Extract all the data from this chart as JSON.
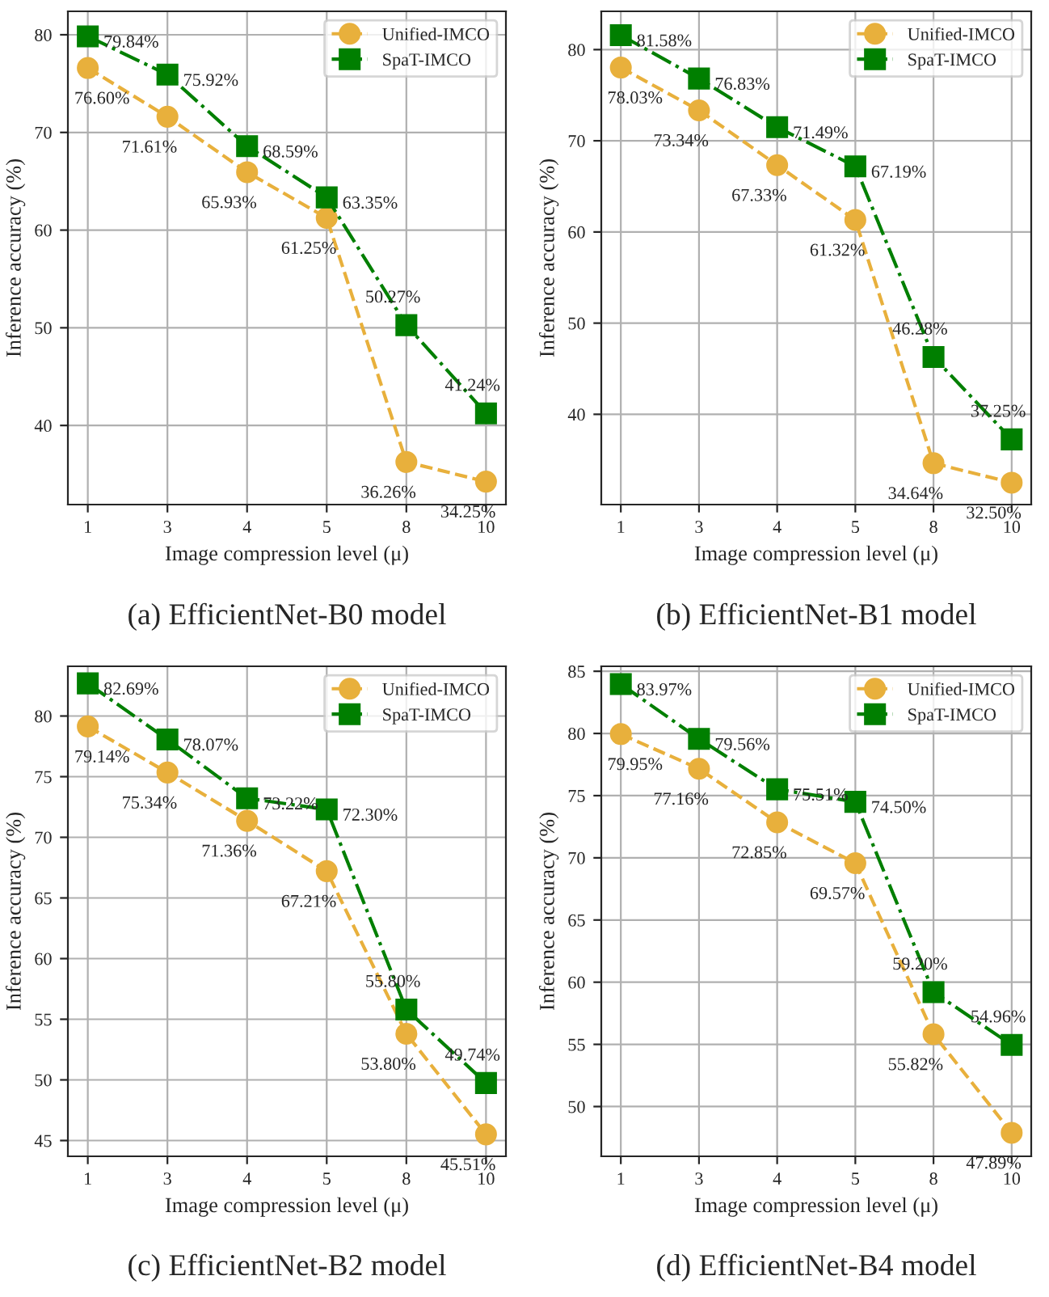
{
  "chart_data": [
    {
      "type": "line",
      "title": "(a) EfficientNet-B0 model",
      "xlabel": "Image compression level (μ)",
      "ylabel": "Inference accuracy (%)",
      "categories": [
        "1",
        "3",
        "4",
        "5",
        "8",
        "10"
      ],
      "ylim": [
        31.9,
        82.4
      ],
      "yticks": [
        40,
        50,
        60,
        70,
        80
      ],
      "grid": true,
      "legend": "top right",
      "series": [
        {
          "name": "Unified-IMCO",
          "color": "#e8b03c",
          "marker": "circle",
          "line_style": "dashed",
          "values": [
            76.6,
            71.61,
            65.93,
            61.25,
            36.26,
            34.25
          ],
          "value_labels": [
            "76.60%",
            "71.61%",
            "65.93%",
            "61.25%",
            "36.26%",
            "34.25%"
          ]
        },
        {
          "name": "SpaT-IMCO",
          "color": "#007f00",
          "marker": "square",
          "line_style": "dashdot",
          "values": [
            79.84,
            75.92,
            68.59,
            63.35,
            50.27,
            41.24
          ],
          "value_labels": [
            "79.84%",
            "75.92%",
            "68.59%",
            "63.35%",
            "50.27%",
            "41.24%"
          ]
        }
      ]
    },
    {
      "type": "line",
      "title": "(b) EfficientNet-B1 model",
      "xlabel": "Image compression level (μ)",
      "ylabel": "Inference accuracy (%)",
      "categories": [
        "1",
        "3",
        "4",
        "5",
        "8",
        "10"
      ],
      "ylim": [
        30.1,
        84.2
      ],
      "yticks": [
        40,
        50,
        60,
        70,
        80
      ],
      "grid": true,
      "legend": "top right",
      "series": [
        {
          "name": "Unified-IMCO",
          "color": "#e8b03c",
          "marker": "circle",
          "line_style": "dashed",
          "values": [
            78.03,
            73.34,
            67.33,
            61.32,
            34.64,
            32.5
          ],
          "value_labels": [
            "78.03%",
            "73.34%",
            "67.33%",
            "61.32%",
            "34.64%",
            "32.50%"
          ]
        },
        {
          "name": "SpaT-IMCO",
          "color": "#007f00",
          "marker": "square",
          "line_style": "dashdot",
          "values": [
            81.58,
            76.83,
            71.49,
            67.19,
            46.28,
            37.25
          ],
          "value_labels": [
            "81.58%",
            "76.83%",
            "71.49%",
            "67.19%",
            "46.28%",
            "37.25%"
          ]
        }
      ]
    },
    {
      "type": "line",
      "title": "(c) EfficientNet-B2 model",
      "xlabel": "Image compression level (μ)",
      "ylabel": "Inference accuracy (%)",
      "categories": [
        "1",
        "3",
        "4",
        "5",
        "8",
        "10"
      ],
      "ylim": [
        43.7,
        84.1
      ],
      "yticks": [
        45,
        50,
        55,
        60,
        65,
        70,
        75,
        80
      ],
      "grid": true,
      "legend": "top right",
      "series": [
        {
          "name": "Unified-IMCO",
          "color": "#e8b03c",
          "marker": "circle",
          "line_style": "dashed",
          "values": [
            79.14,
            75.34,
            71.36,
            67.21,
            53.8,
            45.51
          ],
          "value_labels": [
            "79.14%",
            "75.34%",
            "71.36%",
            "67.21%",
            "53.80%",
            "45.51%"
          ]
        },
        {
          "name": "SpaT-IMCO",
          "color": "#007f00",
          "marker": "square",
          "line_style": "dashdot",
          "values": [
            82.69,
            78.07,
            73.22,
            72.3,
            55.8,
            49.74
          ],
          "value_labels": [
            "82.69%",
            "78.07%",
            "73.22%",
            "72.30%",
            "55.80%",
            "49.74%"
          ]
        }
      ]
    },
    {
      "type": "line",
      "title": "(d) EfficientNet-B4 model",
      "xlabel": "Image compression level (μ)",
      "ylabel": "Inference accuracy (%)",
      "categories": [
        "1",
        "3",
        "4",
        "5",
        "8",
        "10"
      ],
      "ylim": [
        46.0,
        85.4
      ],
      "yticks": [
        50,
        55,
        60,
        65,
        70,
        75,
        80,
        85
      ],
      "grid": true,
      "legend": "top right",
      "series": [
        {
          "name": "Unified-IMCO",
          "color": "#e8b03c",
          "marker": "circle",
          "line_style": "dashed",
          "values": [
            79.95,
            77.16,
            72.85,
            69.57,
            55.82,
            47.89
          ],
          "value_labels": [
            "79.95%",
            "77.16%",
            "72.85%",
            "69.57%",
            "55.82%",
            "47.89%"
          ]
        },
        {
          "name": "SpaT-IMCO",
          "color": "#007f00",
          "marker": "square",
          "line_style": "dashdot",
          "values": [
            83.97,
            79.56,
            75.51,
            74.5,
            59.2,
            54.96
          ],
          "value_labels": [
            "83.97%",
            "79.56%",
            "75.51%",
            "74.50%",
            "59.20%",
            "54.96%"
          ]
        }
      ]
    }
  ]
}
